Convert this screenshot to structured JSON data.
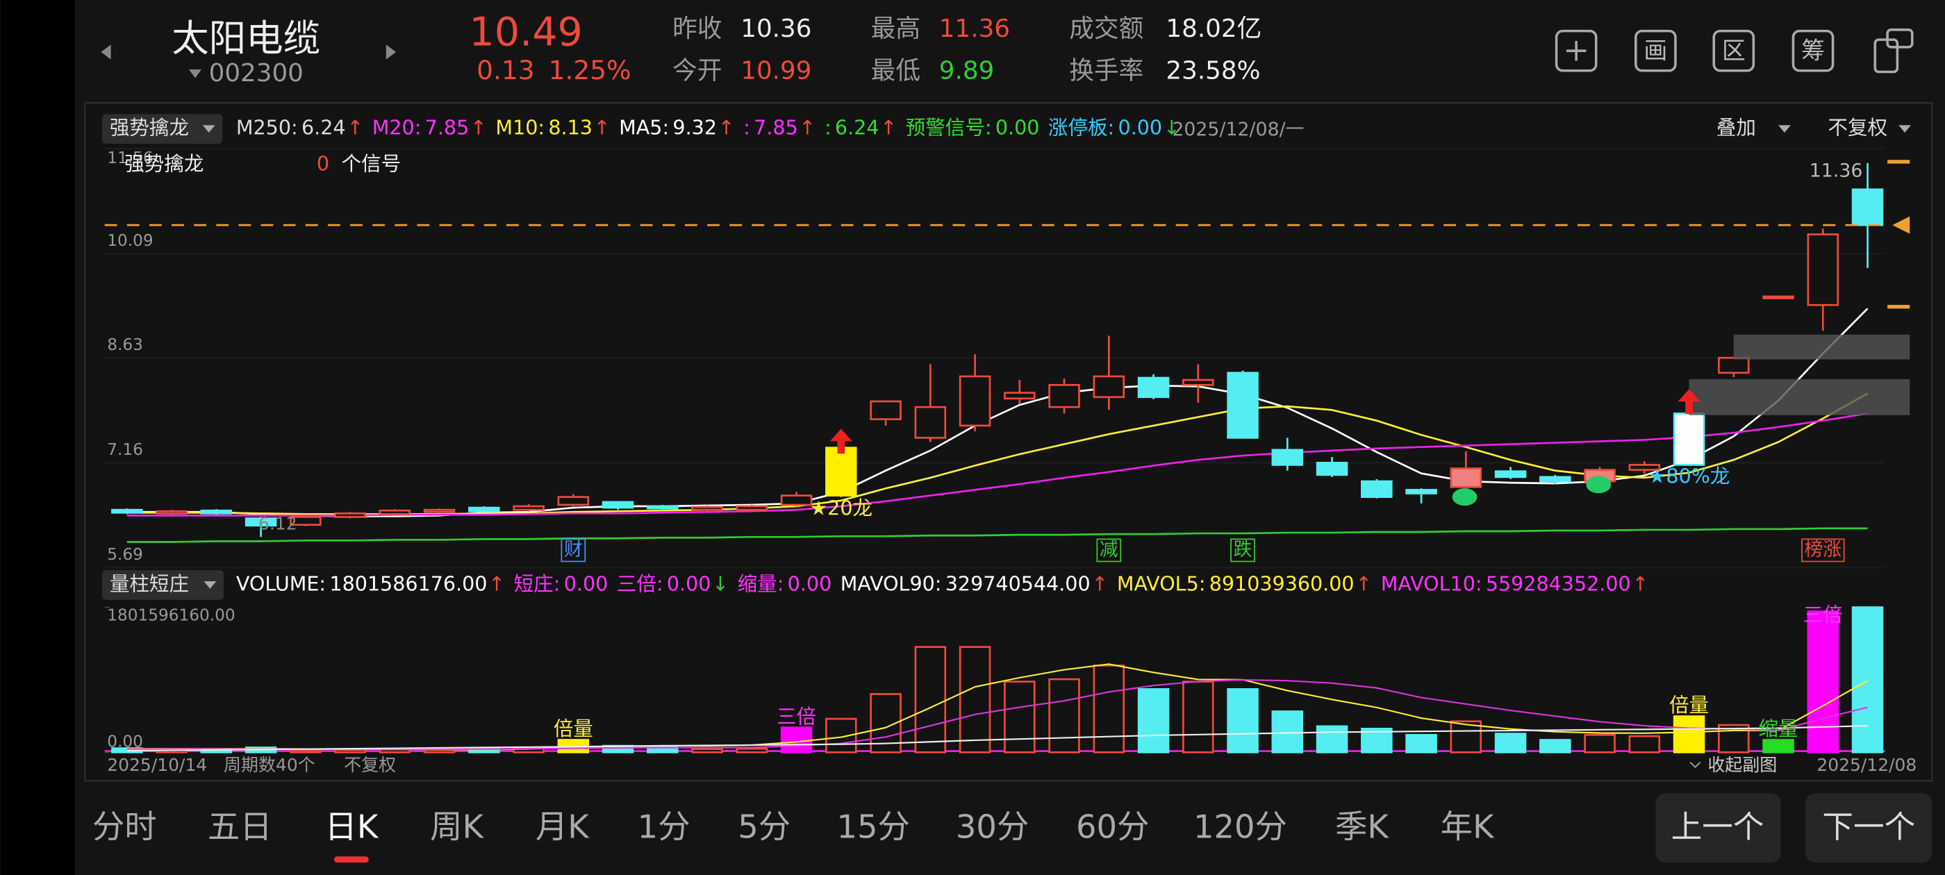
{
  "header": {
    "stock_name": "太阳电缆",
    "stock_code": "002300",
    "price": "10.49",
    "change": "0.13",
    "change_pct": "1.25%",
    "quotes": [
      {
        "label": "昨收",
        "value": "10.36"
      },
      {
        "label": "今开",
        "value": "10.99"
      },
      {
        "label": "最高",
        "value": "11.36"
      },
      {
        "label": "最低",
        "value": "9.89"
      },
      {
        "label": "成交额",
        "value": "18.02亿"
      },
      {
        "label": "换手率",
        "value": "23.58%"
      }
    ],
    "tools": [
      "画",
      "区",
      "筹"
    ]
  },
  "main_panel": {
    "indicator": "强势擒龙",
    "legend": [
      {
        "label": "M250:",
        "value": "6.24",
        "arrow": "↑",
        "color": "#dddddd"
      },
      {
        "label": "M20:",
        "value": "7.85",
        "arrow": "↑",
        "color": "#ff33ff"
      },
      {
        "label": "M10:",
        "value": "8.13",
        "arrow": "↑",
        "color": "#ffee33"
      },
      {
        "label": "MA5:",
        "value": "9.32",
        "arrow": "↑",
        "color": "#ffffff"
      },
      {
        "label": ":",
        "value": "7.85",
        "arrow": "↑",
        "color": "#ff33ff"
      },
      {
        "label": ":",
        "value": "6.24",
        "arrow": "↑",
        "color": "#33dd33"
      },
      {
        "label": "预警信号:",
        "value": "0.00",
        "color": "#33dd33"
      },
      {
        "label": "涨停板:",
        "value": "0.00",
        "arrow": "↓",
        "color": "#33ccff"
      }
    ],
    "date": "2025/12/08/一",
    "overlay": "叠加",
    "adjust": "不复权",
    "signal_title": "强势擒龙",
    "signal_count": "0",
    "signal_unit": "个信号"
  },
  "volume_panel": {
    "indicator": "量柱短庄",
    "legend": [
      {
        "label": "VOLUME:",
        "value": "1801586176.00",
        "arrow": "↑",
        "color": "#ffffff"
      },
      {
        "label": "短庄:",
        "value": "0.00",
        "color": "#ff33ff"
      },
      {
        "label": "三倍:",
        "value": "0.00",
        "arrow": "↓",
        "color": "#ff33ff"
      },
      {
        "label": "缩量:",
        "value": "0.00",
        "color": "#ff33ff"
      },
      {
        "label": "MAVOL90:",
        "value": "329740544.00",
        "arrow": "↑",
        "color": "#ffffff"
      },
      {
        "label": "MAVOL5:",
        "value": "891039360.00",
        "arrow": "↑",
        "color": "#ffee33"
      },
      {
        "label": "MAVOL10:",
        "value": "559284352.00",
        "arrow": "↑",
        "color": "#ff33ff"
      }
    ]
  },
  "footer": {
    "start_date": "2025/10/14",
    "periods": "周期数40个",
    "adjust": "不复权",
    "collapse": "收起副图",
    "end_date": "2025/12/08"
  },
  "chart_data": [
    {
      "type": "candlestick",
      "open": [
        6.5,
        6.45,
        6.49,
        6.38,
        6.29,
        6.4,
        6.44,
        6.47,
        6.53,
        6.5,
        6.57,
        6.61,
        6.55,
        6.5,
        6.5,
        6.57,
        6.7,
        7.77,
        7.51,
        7.68,
        8.06,
        7.94,
        8.08,
        8.35,
        8.25,
        8.42,
        7.34,
        7.16,
        6.9,
        6.78,
        6.82,
        7.04,
        6.96,
        6.9,
        7.06,
        7.13,
        8.42,
        9.49,
        9.37,
        10.99
      ],
      "high": [
        6.52,
        6.5,
        6.51,
        6.4,
        6.42,
        6.47,
        6.51,
        6.52,
        6.55,
        6.58,
        6.72,
        6.62,
        6.57,
        6.56,
        6.57,
        6.75,
        7.37,
        8.02,
        8.54,
        8.68,
        8.32,
        8.34,
        8.94,
        8.4,
        8.54,
        8.45,
        7.51,
        7.24,
        6.93,
        6.8,
        7.32,
        7.1,
        6.99,
        7.1,
        7.18,
        7.85,
        8.63,
        9.49,
        10.44,
        11.36
      ],
      "low": [
        6.44,
        6.43,
        6.43,
        6.12,
        6.27,
        6.38,
        6.42,
        6.45,
        6.46,
        6.48,
        6.55,
        6.5,
        6.49,
        6.48,
        6.48,
        6.55,
        6.68,
        7.68,
        7.45,
        7.6,
        7.98,
        7.85,
        7.9,
        8.05,
        8.0,
        7.5,
        7.05,
        6.96,
        6.66,
        6.59,
        6.72,
        6.93,
        6.86,
        6.87,
        7.0,
        7.13,
        8.36,
        9.49,
        9.01,
        9.89
      ],
      "close": [
        6.46,
        6.48,
        6.45,
        6.28,
        6.4,
        6.45,
        6.49,
        6.5,
        6.48,
        6.55,
        6.68,
        6.53,
        6.52,
        6.54,
        6.55,
        6.7,
        7.37,
        8.02,
        7.94,
        8.37,
        8.14,
        8.25,
        8.37,
        8.08,
        8.32,
        7.51,
        7.13,
        6.99,
        6.68,
        6.73,
        7.08,
        6.96,
        6.9,
        7.06,
        7.13,
        7.85,
        8.63,
        9.49,
        10.36,
        10.49
      ],
      "candle_colors": [
        "#54eef2",
        "#f04a3c",
        "#54eef2",
        "#54eef2",
        "#f04a3c",
        "#f04a3c",
        "#f04a3c",
        "#f04a3c",
        "#54eef2",
        "#f04a3c",
        "#f04a3c",
        "#54eef2",
        "#54eef2",
        "#f04a3c",
        "#f04a3c",
        "#f04a3c",
        "#fff000",
        "#f04a3c",
        "#f04a3c",
        "#f04a3c",
        "#f04a3c",
        "#f04a3c",
        "#f04a3c",
        "#54eef2",
        "#f04a3c",
        "#54eef2",
        "#54eef2",
        "#54eef2",
        "#54eef2",
        "#54eef2",
        "#f04a3c",
        "#54eef2",
        "#54eef2",
        "#f04a3c",
        "#f04a3c",
        "#54eef2",
        "#f04a3c",
        "#f04a3c",
        "#f04a3c",
        "#54eef2"
      ],
      "candle_fills": [
        "#54eef2",
        "none",
        "#54eef2",
        "#54eef2",
        "none",
        "none",
        "none",
        "none",
        "#54eef2",
        "none",
        "none",
        "#54eef2",
        "#54eef2",
        "none",
        "none",
        "none",
        "#fff000",
        "none",
        "none",
        "none",
        "none",
        "none",
        "none",
        "#54eef2",
        "none",
        "#54eef2",
        "#54eef2",
        "#54eef2",
        "#54eef2",
        "#54eef2",
        "#f08080",
        "#54eef2",
        "#54eef2",
        "#f08080",
        "none",
        "#ffffff",
        "none",
        "none",
        "none",
        "#54eef2"
      ],
      "series": [
        {
          "color": "#ffffff",
          "values": [
            6.47,
            6.47,
            6.47,
            6.44,
            6.42,
            6.41,
            6.41,
            6.42,
            6.46,
            6.47,
            6.53,
            6.55,
            6.55,
            6.56,
            6.57,
            6.59,
            6.75,
            7.05,
            7.33,
            7.68,
            7.97,
            8.14,
            8.21,
            8.24,
            8.23,
            8.12,
            7.93,
            7.64,
            7.31,
            7.01,
            6.9,
            6.88,
            6.87,
            6.9,
            6.98,
            7.2,
            7.53,
            8.03,
            8.69,
            9.32
          ]
        },
        {
          "color": "#ffee33",
          "values": [
            6.46,
            6.46,
            6.46,
            6.45,
            6.44,
            6.44,
            6.44,
            6.44,
            6.45,
            6.45,
            6.47,
            6.48,
            6.49,
            6.5,
            6.52,
            6.55,
            6.63,
            6.8,
            6.95,
            7.12,
            7.28,
            7.42,
            7.56,
            7.68,
            7.8,
            7.92,
            7.95,
            7.9,
            7.75,
            7.55,
            7.38,
            7.2,
            7.05,
            6.98,
            6.95,
            7.02,
            7.2,
            7.45,
            7.78,
            8.13
          ]
        },
        {
          "color": "#ee22ee",
          "values": [
            6.42,
            6.42,
            6.42,
            6.42,
            6.42,
            6.42,
            6.43,
            6.43,
            6.43,
            6.44,
            6.45,
            6.45,
            6.46,
            6.47,
            6.48,
            6.5,
            6.55,
            6.62,
            6.7,
            6.78,
            6.86,
            6.95,
            7.03,
            7.12,
            7.2,
            7.26,
            7.3,
            7.33,
            7.36,
            7.38,
            7.4,
            7.42,
            7.44,
            7.46,
            7.48,
            7.52,
            7.58,
            7.66,
            7.75,
            7.85
          ]
        },
        {
          "color": "#33cc33",
          "values": [
            6.05,
            6.05,
            6.06,
            6.06,
            6.07,
            6.07,
            6.08,
            6.08,
            6.09,
            6.09,
            6.1,
            6.1,
            6.11,
            6.11,
            6.12,
            6.12,
            6.13,
            6.13,
            6.14,
            6.14,
            6.15,
            6.15,
            6.16,
            6.16,
            6.17,
            6.17,
            6.18,
            6.18,
            6.19,
            6.19,
            6.2,
            6.2,
            6.21,
            6.21,
            6.22,
            6.22,
            6.23,
            6.23,
            6.24,
            6.24
          ]
        }
      ],
      "ylim": [
        5.69,
        11.56
      ],
      "yticks": [
        5.69,
        7.16,
        8.63,
        10.09,
        11.56
      ],
      "max_label": "11.36",
      "low_label": "6.12",
      "price_line_color": "#f0a030",
      "price_notes": [
        null,
        null,
        null,
        null,
        null,
        null,
        null,
        null,
        null,
        null,
        null,
        null,
        null,
        null,
        null,
        null,
        {
          "text": "★20龙",
          "color": "#ffee33"
        },
        null,
        null,
        null,
        null,
        null,
        null,
        null,
        null,
        null,
        null,
        null,
        null,
        null,
        null,
        null,
        null,
        null,
        null,
        {
          "text": "★80%龙",
          "color": "#33ccff"
        },
        null,
        null,
        null,
        null
      ],
      "bottom_marks": [
        null,
        null,
        null,
        null,
        null,
        null,
        null,
        null,
        null,
        null,
        {
          "text": "财",
          "color": "#4a8cff"
        },
        null,
        null,
        null,
        null,
        null,
        null,
        null,
        null,
        null,
        null,
        null,
        {
          "text": "减",
          "color": "#33cc33"
        },
        null,
        null,
        {
          "text": "跌",
          "color": "#33cc33"
        },
        null,
        null,
        null,
        null,
        null,
        null,
        null,
        null,
        null,
        null,
        null,
        null,
        {
          "text": "榜涨",
          "color": "#f04a3c"
        },
        null
      ]
    },
    {
      "type": "bar",
      "values": [
        50000000,
        30000000,
        40000000,
        60000000,
        25000000,
        30000000,
        35000000,
        30000000,
        45000000,
        60000000,
        154000000,
        80000000,
        70000000,
        40000000,
        45000000,
        308000000,
        416000000,
        724000000,
        1309000000,
        1309000000,
        878000000,
        908000000,
        1078000000,
        785000000,
        878000000,
        785000000,
        508000000,
        323000000,
        293000000,
        216000000,
        385000000,
        231000000,
        154000000,
        216000000,
        200000000,
        447000000,
        339000000,
        154000000,
        1750000000,
        1801586176
      ],
      "colors": [
        "#54eef2",
        "#f04a3c",
        "#54eef2",
        "#54eef2",
        "#f04a3c",
        "#f04a3c",
        "#f04a3c",
        "#f04a3c",
        "#54eef2",
        "#f04a3c",
        "#fff000",
        "#54eef2",
        "#54eef2",
        "#f04a3c",
        "#f04a3c",
        "#ff00ff",
        "#f04a3c",
        "#f04a3c",
        "#f04a3c",
        "#f04a3c",
        "#f04a3c",
        "#f04a3c",
        "#f04a3c",
        "#54eef2",
        "#f04a3c",
        "#54eef2",
        "#54eef2",
        "#54eef2",
        "#54eef2",
        "#54eef2",
        "#f04a3c",
        "#54eef2",
        "#54eef2",
        "#f04a3c",
        "#f04a3c",
        "#fff000",
        "#f04a3c",
        "#22dd22",
        "#ff00ff",
        "#54eef2"
      ],
      "fills": [
        "#54eef2",
        "none",
        "#54eef2",
        "#54eef2",
        "none",
        "none",
        "none",
        "none",
        "#54eef2",
        "none",
        "#fff000",
        "#54eef2",
        "#54eef2",
        "none",
        "none",
        "#ff00ff",
        "none",
        "none",
        "none",
        "none",
        "none",
        "none",
        "none",
        "#54eef2",
        "none",
        "#54eef2",
        "#54eef2",
        "#54eef2",
        "#54eef2",
        "#54eef2",
        "none",
        "#54eef2",
        "#54eef2",
        "none",
        "none",
        "#fff000",
        "none",
        "#22dd22",
        "#ff00ff",
        "#54eef2"
      ],
      "series": [
        {
          "color": "#ffee33",
          "values": [
            45000000,
            44000000,
            43000000,
            45000000,
            41000000,
            37000000,
            38000000,
            36000000,
            33000000,
            40000000,
            65000000,
            74000000,
            82000000,
            81000000,
            90000000,
            129000000,
            188000000,
            307000000,
            555000000,
            813000000,
            927000000,
            1026000000,
            1096000000,
            992000000,
            905000000,
            902000000,
            767000000,
            656000000,
            557000000,
            425000000,
            345000000,
            290000000,
            256000000,
            240000000,
            237000000,
            250000000,
            271000000,
            271000000,
            578000000,
            891039360
          ]
        },
        {
          "color": "#dd33dd",
          "values": [
            40000000,
            40000000,
            40000000,
            40000000,
            40000000,
            40000000,
            40000000,
            40000000,
            40000000,
            42000000,
            50000000,
            55000000,
            58000000,
            58000000,
            60000000,
            80000000,
            110000000,
            190000000,
            330000000,
            470000000,
            560000000,
            640000000,
            750000000,
            830000000,
            880000000,
            900000000,
            890000000,
            860000000,
            800000000,
            680000000,
            600000000,
            520000000,
            450000000,
            380000000,
            330000000,
            300000000,
            290000000,
            270000000,
            420000000,
            559284352
          ]
        },
        {
          "color": "#eeeeee",
          "values": [
            20000000,
            25000000,
            30000000,
            35000000,
            40000000,
            45000000,
            50000000,
            55000000,
            60000000,
            65000000,
            70000000,
            75000000,
            80000000,
            85000000,
            90000000,
            95000000,
            100000000,
            110000000,
            130000000,
            150000000,
            165000000,
            180000000,
            195000000,
            210000000,
            220000000,
            230000000,
            240000000,
            250000000,
            255000000,
            260000000,
            265000000,
            270000000,
            275000000,
            280000000,
            285000000,
            290000000,
            295000000,
            300000000,
            315000000,
            329740544
          ]
        }
      ],
      "ylim": [
        0,
        1801596160
      ],
      "yticks": [
        {
          "value": 0,
          "label": "0.00"
        },
        {
          "value": 1801596160,
          "label": "1801596160.00"
        }
      ],
      "bar_notes": [
        null,
        null,
        null,
        null,
        null,
        null,
        null,
        null,
        null,
        null,
        {
          "text": "倍量",
          "color": "#ffee33"
        },
        null,
        null,
        null,
        null,
        {
          "text": "三倍",
          "color": "#ff33ff"
        },
        null,
        null,
        null,
        null,
        null,
        null,
        null,
        null,
        null,
        null,
        null,
        null,
        null,
        null,
        null,
        null,
        null,
        null,
        null,
        {
          "text": "倍量",
          "color": "#ffee33"
        },
        null,
        {
          "text": "缩量",
          "color": "#33dd33"
        },
        {
          "text": "三倍",
          "color": "#ff33ff"
        },
        null
      ]
    }
  ],
  "tabs": {
    "items": [
      "分时",
      "五日",
      "日K",
      "周K",
      "月K",
      "1分",
      "5分",
      "15分",
      "30分",
      "60分",
      "120分",
      "季K",
      "年K"
    ],
    "active": "日K"
  },
  "nav": {
    "prev": "上一个",
    "next": "下一个"
  }
}
